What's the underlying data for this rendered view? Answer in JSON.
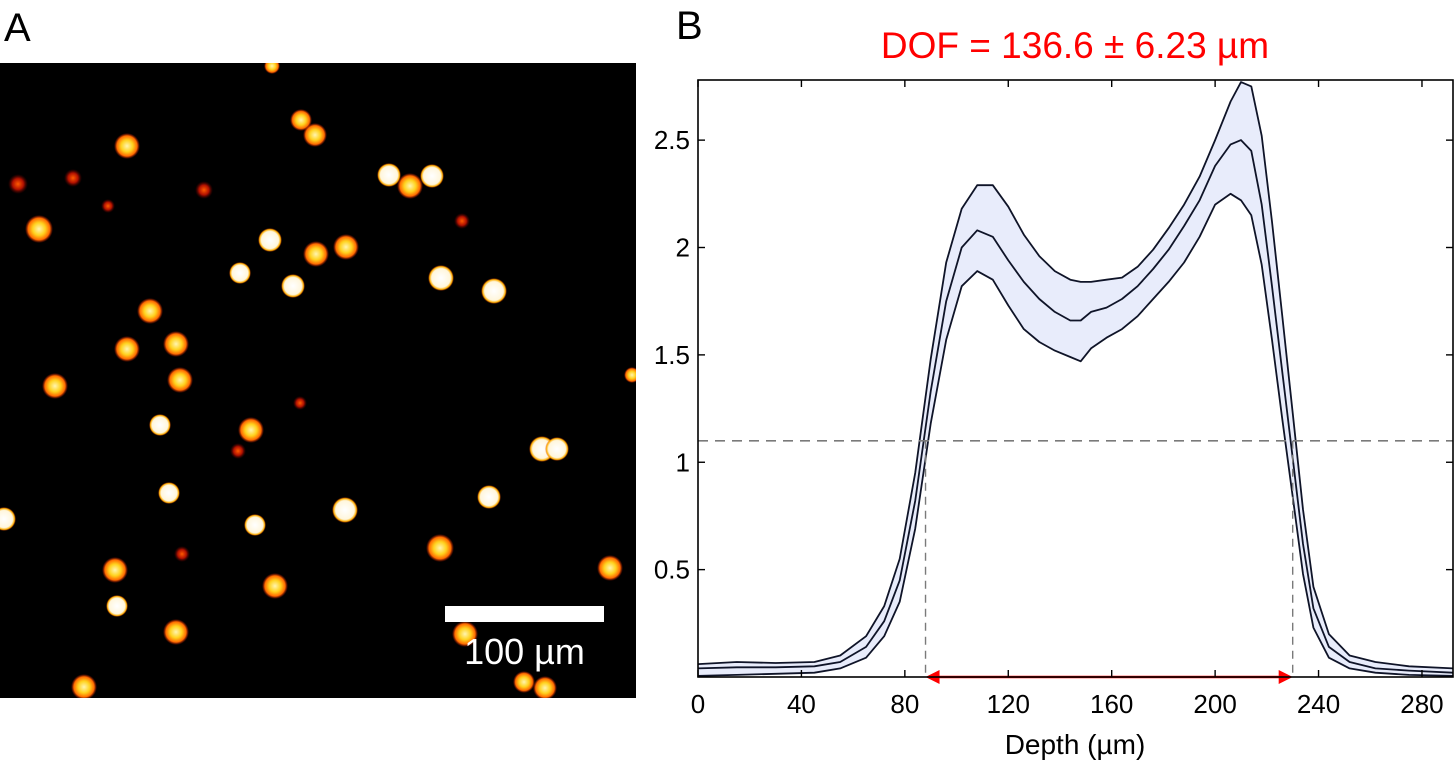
{
  "panels": {
    "a_label": "A",
    "b_label": "B"
  },
  "micrograph": {
    "scale_bar_label": "100 µm",
    "colors": {
      "background": "#000000",
      "bright": "#ffffff",
      "warm": "#ffd21e",
      "hot": "#ff5a00",
      "dim": "#b01000"
    }
  },
  "chart_data": {
    "type": "line",
    "title": "DOF = 136.6 ± 6.23 µm",
    "title_color": "#ff0000",
    "xlabel": "Depth (µm)",
    "ylabel": "",
    "xlim": [
      0,
      292
    ],
    "ylim": [
      0,
      2.78
    ],
    "xticks": [
      0,
      40,
      80,
      120,
      160,
      200,
      240,
      280
    ],
    "yticks": [
      0.5,
      1,
      1.5,
      2,
      2.5
    ],
    "ytick_labels": [
      "0.5",
      "1",
      "1.5",
      "2",
      "2.5"
    ],
    "threshold": 1.1,
    "dof_range": [
      88,
      230
    ],
    "band_fill": "#e8ecfb",
    "line_color": "#0f1428",
    "x": [
      0,
      15,
      30,
      45,
      55,
      65,
      72,
      78,
      84,
      90,
      96,
      102,
      108,
      114,
      120,
      126,
      132,
      138,
      144,
      148,
      152,
      158,
      164,
      170,
      176,
      182,
      188,
      194,
      200,
      206,
      210,
      214,
      218,
      222,
      226,
      230,
      234,
      238,
      244,
      252,
      262,
      275,
      292
    ],
    "series": [
      {
        "values": [
          0.04,
          0.045,
          0.045,
          0.05,
          0.07,
          0.14,
          0.26,
          0.45,
          0.82,
          1.33,
          1.75,
          2.0,
          2.08,
          2.05,
          1.94,
          1.84,
          1.76,
          1.7,
          1.66,
          1.66,
          1.7,
          1.72,
          1.76,
          1.82,
          1.9,
          1.99,
          2.1,
          2.22,
          2.38,
          2.48,
          2.5,
          2.45,
          2.2,
          1.82,
          1.42,
          1.02,
          0.62,
          0.32,
          0.14,
          0.07,
          0.04,
          0.03,
          0.02
        ]
      },
      {
        "values": [
          0.06,
          0.07,
          0.065,
          0.07,
          0.1,
          0.19,
          0.33,
          0.55,
          0.95,
          1.48,
          1.93,
          2.18,
          2.29,
          2.29,
          2.19,
          2.06,
          1.96,
          1.89,
          1.85,
          1.84,
          1.84,
          1.85,
          1.86,
          1.91,
          1.99,
          2.09,
          2.2,
          2.33,
          2.5,
          2.68,
          2.77,
          2.75,
          2.52,
          2.12,
          1.68,
          1.23,
          0.78,
          0.42,
          0.2,
          0.1,
          0.07,
          0.05,
          0.04
        ]
      },
      {
        "values": [
          0.005,
          0.01,
          0.015,
          0.02,
          0.04,
          0.09,
          0.19,
          0.35,
          0.69,
          1.18,
          1.57,
          1.82,
          1.89,
          1.85,
          1.73,
          1.62,
          1.56,
          1.52,
          1.49,
          1.47,
          1.53,
          1.58,
          1.62,
          1.68,
          1.76,
          1.84,
          1.93,
          2.05,
          2.2,
          2.25,
          2.22,
          2.15,
          1.92,
          1.57,
          1.2,
          0.84,
          0.48,
          0.23,
          0.09,
          0.04,
          0.02,
          0.01,
          0.005
        ]
      }
    ]
  }
}
